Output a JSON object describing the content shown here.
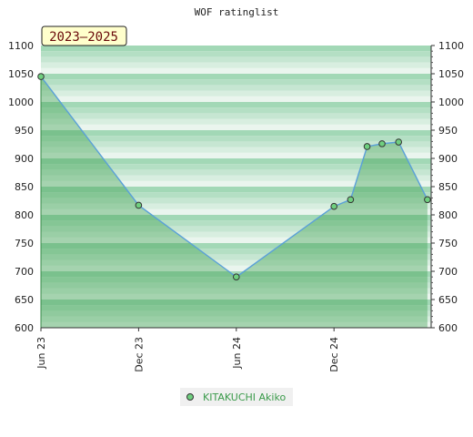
{
  "chart_data": {
    "type": "line",
    "title": "WOF ratinglist",
    "badge": "2023–2025",
    "xlabel": "",
    "ylabel": "",
    "ylim": [
      600,
      1100
    ],
    "y_ticks": [
      600,
      650,
      700,
      750,
      800,
      850,
      900,
      950,
      1000,
      1050,
      1100
    ],
    "x_range": [
      "2023-06-01",
      "2025-06-01"
    ],
    "x_ticks": [
      {
        "date": "2023-06-01",
        "label": "Jun 23"
      },
      {
        "date": "2023-12-01",
        "label": "Dec 23"
      },
      {
        "date": "2024-06-01",
        "label": "Jun 24"
      },
      {
        "date": "2024-12-01",
        "label": "Dec 24"
      }
    ],
    "grid": true,
    "legend_position": "bottom",
    "series": [
      {
        "name": "KITAKUCHI Akiko",
        "color": "#5aa0d8",
        "marker_color": "#6fcf7f",
        "fill_color": "#3fa050",
        "points": [
          {
            "x": "2023-06-01",
            "y": 1045
          },
          {
            "x": "2023-12-01",
            "y": 817
          },
          {
            "x": "2024-06-01",
            "y": 690
          },
          {
            "x": "2024-12-01",
            "y": 815
          },
          {
            "x": "2025-01-01",
            "y": 827
          },
          {
            "x": "2025-02-01",
            "y": 921
          },
          {
            "x": "2025-03-01",
            "y": 926
          },
          {
            "x": "2025-04-01",
            "y": 929
          },
          {
            "x": "2025-05-25",
            "y": 827
          }
        ]
      }
    ]
  }
}
